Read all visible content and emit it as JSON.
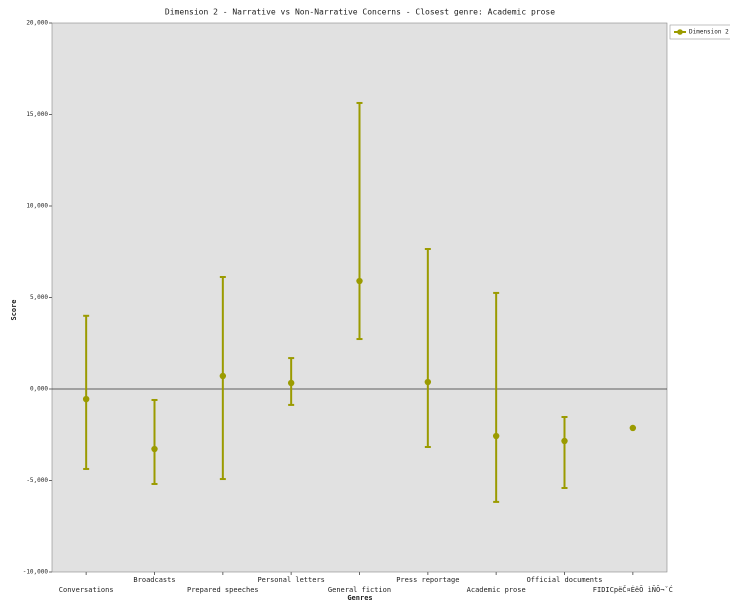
{
  "chart_data": {
    "type": "errorbar",
    "title": "Dimension 2 - Narrative vs Non-Narrative Concerns - Closest genre: Academic prose",
    "x_label": "Genres",
    "y_label": "Score",
    "categories": [
      "Conversations",
      "Broadcasts",
      "Prepared speeches",
      "Personal letters",
      "General fiction",
      "Press reportage",
      "Academic prose",
      "Official documents",
      "FIDICpëČ¤ĖëŌ ìÑŌ¬ˇĆ"
    ],
    "series": [
      {
        "name": "Dimension 2",
        "color": "#9b9b00",
        "values": [
          -0.55,
          -3.28,
          0.71,
          0.33,
          5.9,
          0.38,
          -2.57,
          -2.84,
          -2.13
        ],
        "low": [
          -4.37,
          -5.19,
          -4.92,
          -0.87,
          2.73,
          -3.17,
          -6.17,
          -5.41,
          null
        ],
        "high": [
          4.0,
          -0.6,
          6.12,
          1.69,
          15.63,
          7.65,
          5.25,
          -1.53,
          null
        ]
      }
    ],
    "ylim": [
      -10,
      20
    ],
    "yticks": [
      {
        "value": -10,
        "label": "-10,000"
      },
      {
        "value": -5,
        "label": "-5,000"
      },
      {
        "value": 0,
        "label": "0,000"
      },
      {
        "value": 5,
        "label": "5,000"
      },
      {
        "value": 10,
        "label": "10,000"
      },
      {
        "value": 15,
        "label": "15,000"
      },
      {
        "value": 20,
        "label": "20,000"
      }
    ],
    "legend": "top-right"
  }
}
